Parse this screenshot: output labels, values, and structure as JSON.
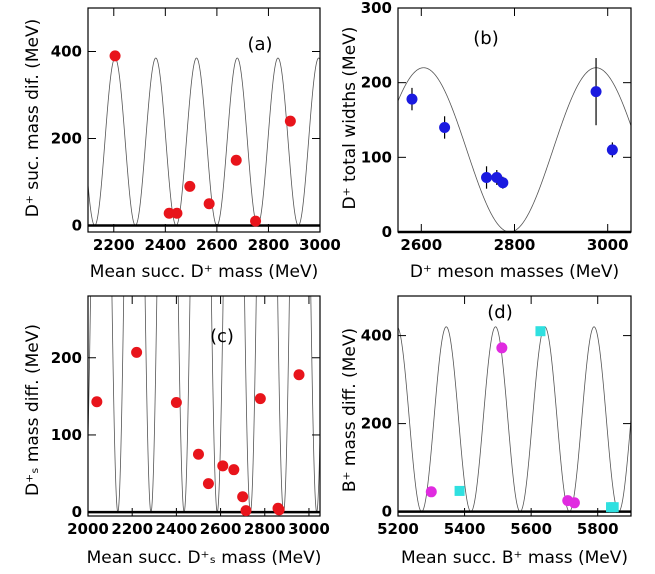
{
  "chart_data": [
    {
      "type": "scatter",
      "panel": "(a)",
      "xlabel": "Mean succ. D⁺ mass (MeV)",
      "ylabel": "D⁺ suc. mass dif. (MeV)",
      "xlim": [
        2100,
        3000
      ],
      "ylim": [
        -15,
        500
      ],
      "xticks": [
        2200,
        2400,
        2600,
        2800,
        3000
      ],
      "yticks": [
        0,
        200,
        400
      ],
      "curve": {
        "amp": 385,
        "period": 158,
        "phase_x": 2205
      },
      "series": [
        {
          "color": "#e8141b",
          "marker": "circle",
          "x": [
            2205,
            2415,
            2445,
            2495,
            2570,
            2675,
            2750,
            2885
          ],
          "y": [
            390,
            28,
            28,
            90,
            50,
            150,
            10,
            240
          ],
          "yerr": [
            0,
            0,
            0,
            0,
            0,
            0,
            0,
            0
          ]
        }
      ]
    },
    {
      "type": "scatter",
      "panel": "(b)",
      "xlabel": "D⁺ meson masses (MeV)",
      "ylabel": "D⁺ total widths (MeV)",
      "xlim": [
        2550,
        3050
      ],
      "ylim": [
        0,
        300
      ],
      "xticks": [
        2600,
        2800,
        3000
      ],
      "yticks": [
        0,
        100,
        200,
        300
      ],
      "curve": {
        "amp": 220,
        "period": 370,
        "phase_x": 2605
      },
      "series": [
        {
          "color": "#1a1ae0",
          "marker": "circle",
          "x": [
            2580,
            2650,
            2740,
            2762,
            2775,
            2975,
            3010
          ],
          "y": [
            178,
            140,
            73,
            73,
            66,
            188,
            110
          ],
          "yerr": [
            15,
            15,
            15,
            10,
            8,
            45,
            10
          ]
        }
      ]
    },
    {
      "type": "scatter",
      "panel": "(c)",
      "xlabel": "Mean succ. D⁺ₛ mass (MeV)",
      "ylabel": "D⁺ₛ mass diff. (MeV)",
      "xlim": [
        2000,
        3050
      ],
      "ylim": [
        -5,
        280
      ],
      "xticks": [
        2000,
        2200,
        2400,
        2600,
        2800,
        3000
      ],
      "yticks": [
        0,
        100,
        200
      ],
      "curve": {
        "amp": 1000,
        "period": 150,
        "phase_x": 2060
      },
      "series": [
        {
          "color": "#e8141b",
          "marker": "circle",
          "x": [
            2040,
            2220,
            2400,
            2500,
            2545,
            2610,
            2660,
            2700,
            2715,
            2780,
            2860,
            2865,
            2955
          ],
          "y": [
            143,
            207,
            142,
            75,
            37,
            60,
            55,
            20,
            2,
            147,
            5,
            3,
            178
          ],
          "yerr": [
            0,
            0,
            0,
            0,
            0,
            0,
            0,
            0,
            0,
            0,
            0,
            0,
            0
          ]
        }
      ]
    },
    {
      "type": "scatter",
      "panel": "(d)",
      "xlabel": "Mean succ. B⁺ mass (MeV)",
      "ylabel": "B⁺ mass diff. (MeV)",
      "xlim": [
        5200,
        5900
      ],
      "ylim": [
        -10,
        490
      ],
      "xticks": [
        5200,
        5400,
        5600,
        5800
      ],
      "yticks": [
        0,
        200,
        400
      ],
      "curve": {
        "amp": 420,
        "period": 148,
        "phase_x": 5345
      },
      "series": [
        {
          "color": "#e02be0",
          "marker": "circle",
          "x": [
            5300,
            5512,
            5710,
            5730
          ],
          "y": [
            45,
            372,
            25,
            20
          ]
        },
        {
          "color": "#2fe0e0",
          "marker": "square",
          "x": [
            5385,
            5628,
            5840,
            5848
          ],
          "y": [
            47,
            410,
            10,
            10
          ]
        }
      ]
    }
  ]
}
